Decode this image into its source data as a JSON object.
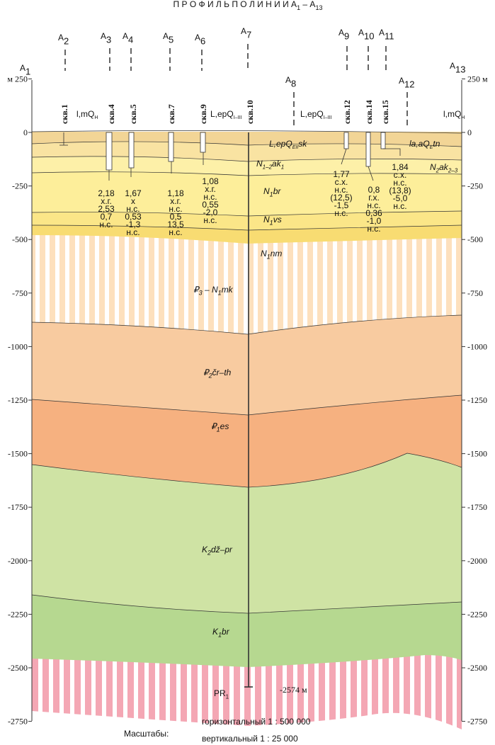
{
  "title": [
    "П Р О Ф И Л Ь   П О   Л И Н И И   А",
    "1",
    " – А",
    "13"
  ],
  "points": [
    [
      "A",
      "1"
    ],
    [
      "A",
      "2"
    ],
    [
      "A",
      "3"
    ],
    [
      "A",
      "4"
    ],
    [
      "A",
      "5"
    ],
    [
      "A",
      "6"
    ],
    [
      "A",
      "7"
    ],
    [
      "A",
      "8"
    ],
    [
      "A",
      "9"
    ],
    [
      "A",
      "10"
    ],
    [
      "A",
      "11"
    ],
    [
      "A",
      "12"
    ],
    [
      "A",
      "13"
    ]
  ],
  "wells": [
    "скв.1",
    "скв.4",
    "скв.5",
    "скв.7",
    "скв.9",
    "скв.10",
    "скв.12",
    "скв.14",
    "скв.15"
  ],
  "well_data": [
    [
      "2,18",
      "х.г.",
      "2,53",
      "0,7",
      "н.с."
    ],
    [
      "1,67",
      "х",
      "н.с.",
      "0,53",
      "-1,3",
      "н.с."
    ],
    [
      "1,18",
      "х.г.",
      "н.с.",
      "0,5",
      "13,5",
      "н.с."
    ],
    [
      "1,08",
      "х.г.",
      "н.с.",
      "0,55",
      "-2,0",
      "н.с."
    ],
    [
      "1,77",
      "с.х.",
      "н.с.",
      "(12,5)",
      "-1,5",
      "н.с."
    ],
    [
      "0,8",
      "г.х.",
      "н.с.",
      "0,36",
      "-1,0",
      "н.с."
    ],
    [
      "1,84",
      "с.х.",
      "н.с.",
      "(13,8)",
      "-5,0",
      "н.с."
    ]
  ],
  "formations": [
    [
      "l,mQ",
      "H"
    ],
    [
      "L,epQ",
      "I–III"
    ],
    [
      "L,epQ",
      "I–III"
    ],
    [
      "l,mQ",
      "H"
    ],
    [
      "L,epQ",
      "EII",
      "sk"
    ],
    [
      "la,aQ",
      "E",
      "tn"
    ],
    [
      "N",
      "1–2",
      "ak",
      "1"
    ],
    [
      "N",
      "2",
      "ak",
      "2–3"
    ],
    [
      "N",
      "1",
      "br"
    ],
    [
      "N",
      "1",
      "vs"
    ],
    [
      "N",
      "1",
      "nm"
    ],
    [
      "₽",
      "3",
      " – N",
      "1",
      "mk"
    ],
    [
      "₽",
      "2",
      "čr–th"
    ],
    [
      "₽",
      "1",
      "es"
    ],
    [
      "K",
      "2",
      "dž–pr"
    ],
    [
      "K",
      "1",
      "br"
    ],
    [
      "PR",
      "1"
    ]
  ],
  "depth_label": "-2574 м",
  "axis_left": {
    "ticks": [
      {
        "value": 250,
        "label": "м 250"
      },
      0,
      -250,
      -500,
      -750,
      -1000,
      -1250,
      -1500,
      -1750,
      -2000,
      -2250,
      -2500,
      -2750
    ]
  },
  "axis_right": {
    "ticks": [
      {
        "value": 250,
        "label": "250 м"
      },
      0,
      -250,
      -500,
      -750,
      -1000,
      -1250,
      -1500,
      -1750,
      -2000,
      -2250,
      -2500,
      -2750
    ]
  },
  "scale": {
    "title": "Масштабы:",
    "horizontal": "горизонтальный 1 : 500 000",
    "vertical": "вертикальный 1 : 25 000"
  }
}
